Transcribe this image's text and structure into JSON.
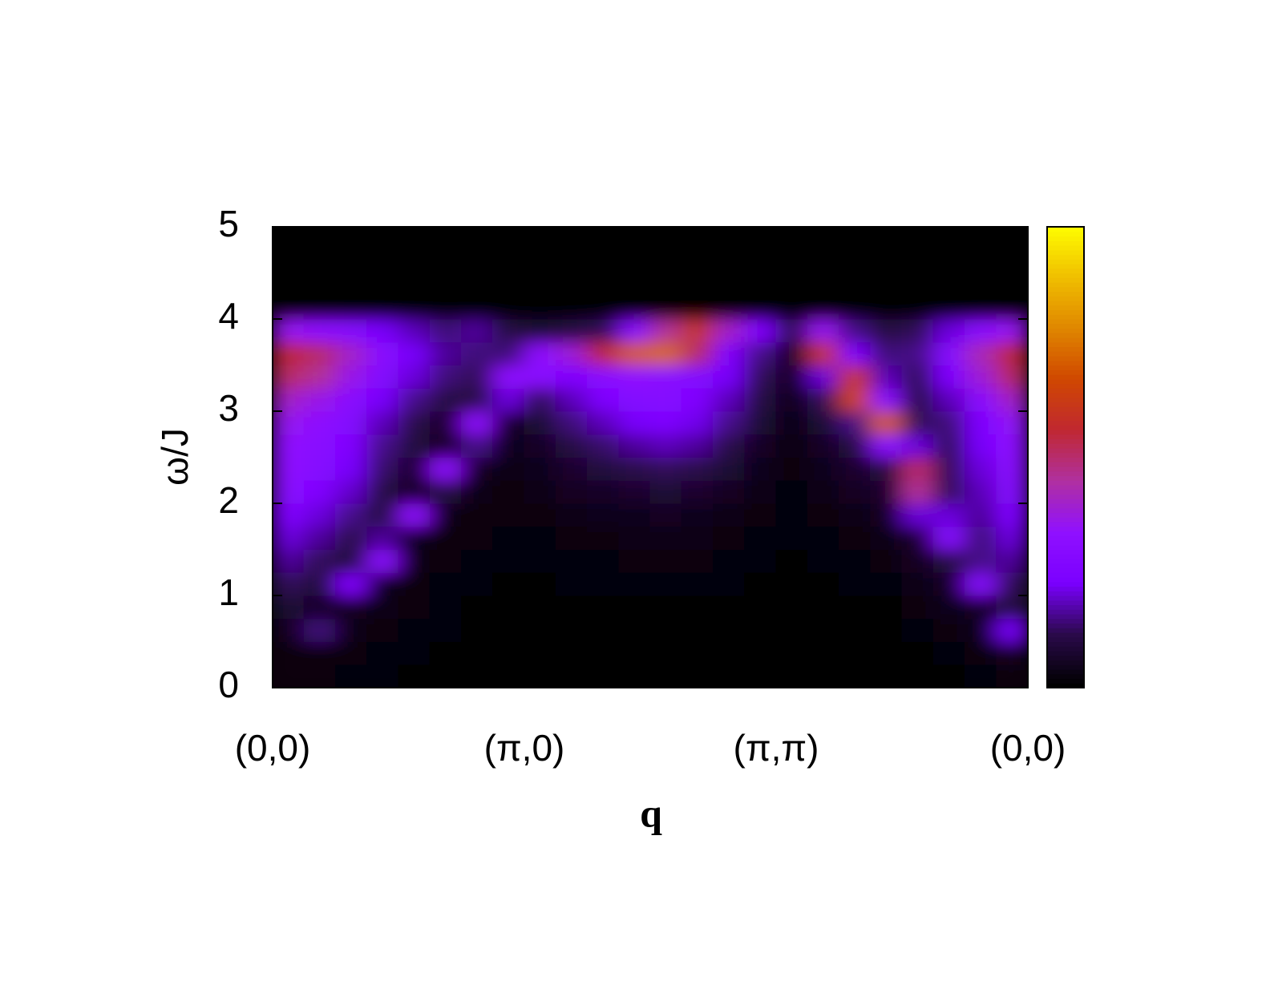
{
  "chart_data": {
    "type": "heatmap",
    "xlabel": "q",
    "ylabel": "ω/J",
    "xlim": [
      0,
      3
    ],
    "ylim": [
      0,
      5
    ],
    "xticks": [
      {
        "value": 0,
        "label": "(0,0)"
      },
      {
        "value": 1,
        "label": "(π,0)"
      },
      {
        "value": 2,
        "label": "(π,π)"
      },
      {
        "value": 3,
        "label": "(0,0)"
      }
    ],
    "yticks": [
      0,
      1,
      2,
      3,
      4,
      5
    ],
    "zlim": [
      0,
      1
    ],
    "colormap": [
      "#000000",
      "#2a0a4a",
      "#7a00ff",
      "#9010ff",
      "#b030a0",
      "#c02830",
      "#d04800",
      "#e08800",
      "#f0c000",
      "#ffff00"
    ],
    "x": [
      0.0625,
      0.1875,
      0.3125,
      0.4375,
      0.5625,
      0.6875,
      0.8125,
      0.9375,
      1.0625,
      1.1875,
      1.3125,
      1.4375,
      1.5625,
      1.6875,
      1.8125,
      1.9375,
      2.0625,
      2.1875,
      2.3125,
      2.4375,
      2.5625,
      2.6875,
      2.8125,
      2.9375
    ],
    "y": [
      0.125,
      0.375,
      0.625,
      0.875,
      1.125,
      1.375,
      1.625,
      1.875,
      2.125,
      2.375,
      2.625,
      2.875,
      3.125,
      3.375,
      3.625,
      3.875,
      4.125,
      4.375,
      4.625,
      4.875
    ],
    "z": [
      [
        0.02,
        0.02,
        0.05,
        0.08,
        0.12,
        0.16,
        0.2,
        0.25,
        0.3,
        0.32,
        0.33,
        0.35,
        0.4,
        0.5,
        0.55,
        0.35,
        0,
        0,
        0,
        0
      ],
      [
        0.02,
        0.02,
        0.14,
        0.06,
        0.09,
        0.12,
        0.16,
        0.2,
        0.25,
        0.28,
        0.3,
        0.32,
        0.36,
        0.45,
        0.5,
        0.32,
        0,
        0,
        0,
        0
      ],
      [
        0.01,
        0.02,
        0.03,
        0.05,
        0.26,
        0.08,
        0.11,
        0.15,
        0.19,
        0.22,
        0.25,
        0.27,
        0.3,
        0.36,
        0.4,
        0.28,
        0,
        0,
        0,
        0
      ],
      [
        0.01,
        0.01,
        0.02,
        0.03,
        0.04,
        0.3,
        0.16,
        0.08,
        0.1,
        0.13,
        0.15,
        0.18,
        0.22,
        0.27,
        0.3,
        0.22,
        0,
        0,
        0,
        0
      ],
      [
        0,
        0.01,
        0.01,
        0.02,
        0.02,
        0.03,
        0.04,
        0.32,
        0.06,
        0.07,
        0.09,
        0.11,
        0.15,
        0.2,
        0.22,
        0.18,
        0,
        0,
        0,
        0
      ],
      [
        0,
        0,
        0.01,
        0.01,
        0.01,
        0.02,
        0.02,
        0.03,
        0.1,
        0.32,
        0.05,
        0.07,
        0.1,
        0.14,
        0.16,
        0.14,
        0,
        0,
        0,
        0
      ],
      [
        0,
        0,
        0,
        0,
        0.01,
        0.01,
        0.02,
        0.02,
        0.03,
        0.05,
        0.15,
        0.32,
        0.1,
        0.12,
        0.14,
        0.16,
        0,
        0,
        0,
        0
      ],
      [
        0,
        0,
        0,
        0,
        0,
        0.01,
        0.01,
        0.02,
        0.02,
        0.03,
        0.04,
        0.06,
        0.2,
        0.32,
        0.14,
        0.1,
        0,
        0,
        0,
        0
      ],
      [
        0,
        0,
        0,
        0,
        0,
        0.01,
        0.01,
        0.02,
        0.03,
        0.04,
        0.06,
        0.08,
        0.12,
        0.3,
        0.32,
        0.08,
        0,
        0,
        0,
        0
      ],
      [
        0,
        0,
        0,
        0,
        0.01,
        0.01,
        0.02,
        0.03,
        0.05,
        0.07,
        0.1,
        0.14,
        0.18,
        0.25,
        0.38,
        0.1,
        0,
        0,
        0,
        0
      ],
      [
        0,
        0,
        0,
        0,
        0.01,
        0.01,
        0.02,
        0.04,
        0.06,
        0.09,
        0.13,
        0.18,
        0.24,
        0.3,
        0.55,
        0.12,
        0,
        0,
        0,
        0
      ],
      [
        0,
        0,
        0,
        0,
        0.01,
        0.02,
        0.03,
        0.04,
        0.07,
        0.11,
        0.16,
        0.22,
        0.27,
        0.33,
        0.7,
        0.3,
        0,
        0,
        0,
        0
      ],
      [
        0,
        0,
        0,
        0,
        0.01,
        0.02,
        0.03,
        0.05,
        0.08,
        0.12,
        0.18,
        0.24,
        0.28,
        0.3,
        0.72,
        0.45,
        0,
        0,
        0,
        0
      ],
      [
        0,
        0,
        0,
        0,
        0.01,
        0.02,
        0.03,
        0.04,
        0.07,
        0.11,
        0.16,
        0.21,
        0.25,
        0.27,
        0.5,
        0.6,
        0,
        0,
        0,
        0
      ],
      [
        0,
        0,
        0,
        0,
        0.01,
        0.01,
        0.02,
        0.03,
        0.05,
        0.08,
        0.11,
        0.15,
        0.18,
        0.22,
        0.26,
        0.4,
        0,
        0,
        0,
        0
      ],
      [
        0,
        0,
        0,
        0,
        0,
        0.01,
        0.01,
        0.02,
        0.03,
        0.04,
        0.06,
        0.08,
        0.1,
        0.12,
        0.15,
        0.25,
        0,
        0,
        0,
        0
      ],
      [
        0,
        0,
        0,
        0,
        0,
        0,
        0.01,
        0.01,
        0.01,
        0.02,
        0.02,
        0.03,
        0.04,
        0.05,
        0.06,
        0.12,
        0,
        0,
        0,
        0
      ],
      [
        0,
        0,
        0,
        0,
        0,
        0.01,
        0.01,
        0.02,
        0.03,
        0.04,
        0.06,
        0.08,
        0.12,
        0.2,
        0.6,
        0.35,
        0,
        0,
        0,
        0
      ],
      [
        0,
        0,
        0,
        0,
        0.01,
        0.01,
        0.02,
        0.03,
        0.05,
        0.07,
        0.1,
        0.15,
        0.65,
        0.6,
        0.25,
        0.15,
        0,
        0,
        0,
        0
      ],
      [
        0,
        0,
        0,
        0,
        0.01,
        0.02,
        0.03,
        0.05,
        0.07,
        0.1,
        0.3,
        0.7,
        0.3,
        0.18,
        0.14,
        0.1,
        0,
        0,
        0,
        0
      ],
      [
        0,
        0,
        0.01,
        0.02,
        0.03,
        0.05,
        0.07,
        0.2,
        0.45,
        0.5,
        0.2,
        0.12,
        0.1,
        0.12,
        0.15,
        0.12,
        0,
        0,
        0,
        0
      ],
      [
        0,
        0.01,
        0.02,
        0.04,
        0.06,
        0.1,
        0.28,
        0.2,
        0.12,
        0.12,
        0.12,
        0.14,
        0.18,
        0.24,
        0.28,
        0.2,
        0,
        0,
        0,
        0
      ],
      [
        0.01,
        0.02,
        0.04,
        0.06,
        0.28,
        0.15,
        0.14,
        0.16,
        0.18,
        0.2,
        0.22,
        0.24,
        0.3,
        0.38,
        0.42,
        0.3,
        0,
        0,
        0,
        0
      ],
      [
        0.02,
        0.05,
        0.22,
        0.1,
        0.12,
        0.16,
        0.2,
        0.24,
        0.28,
        0.3,
        0.32,
        0.34,
        0.4,
        0.5,
        0.55,
        0.35,
        0,
        0,
        0,
        0
      ]
    ]
  }
}
